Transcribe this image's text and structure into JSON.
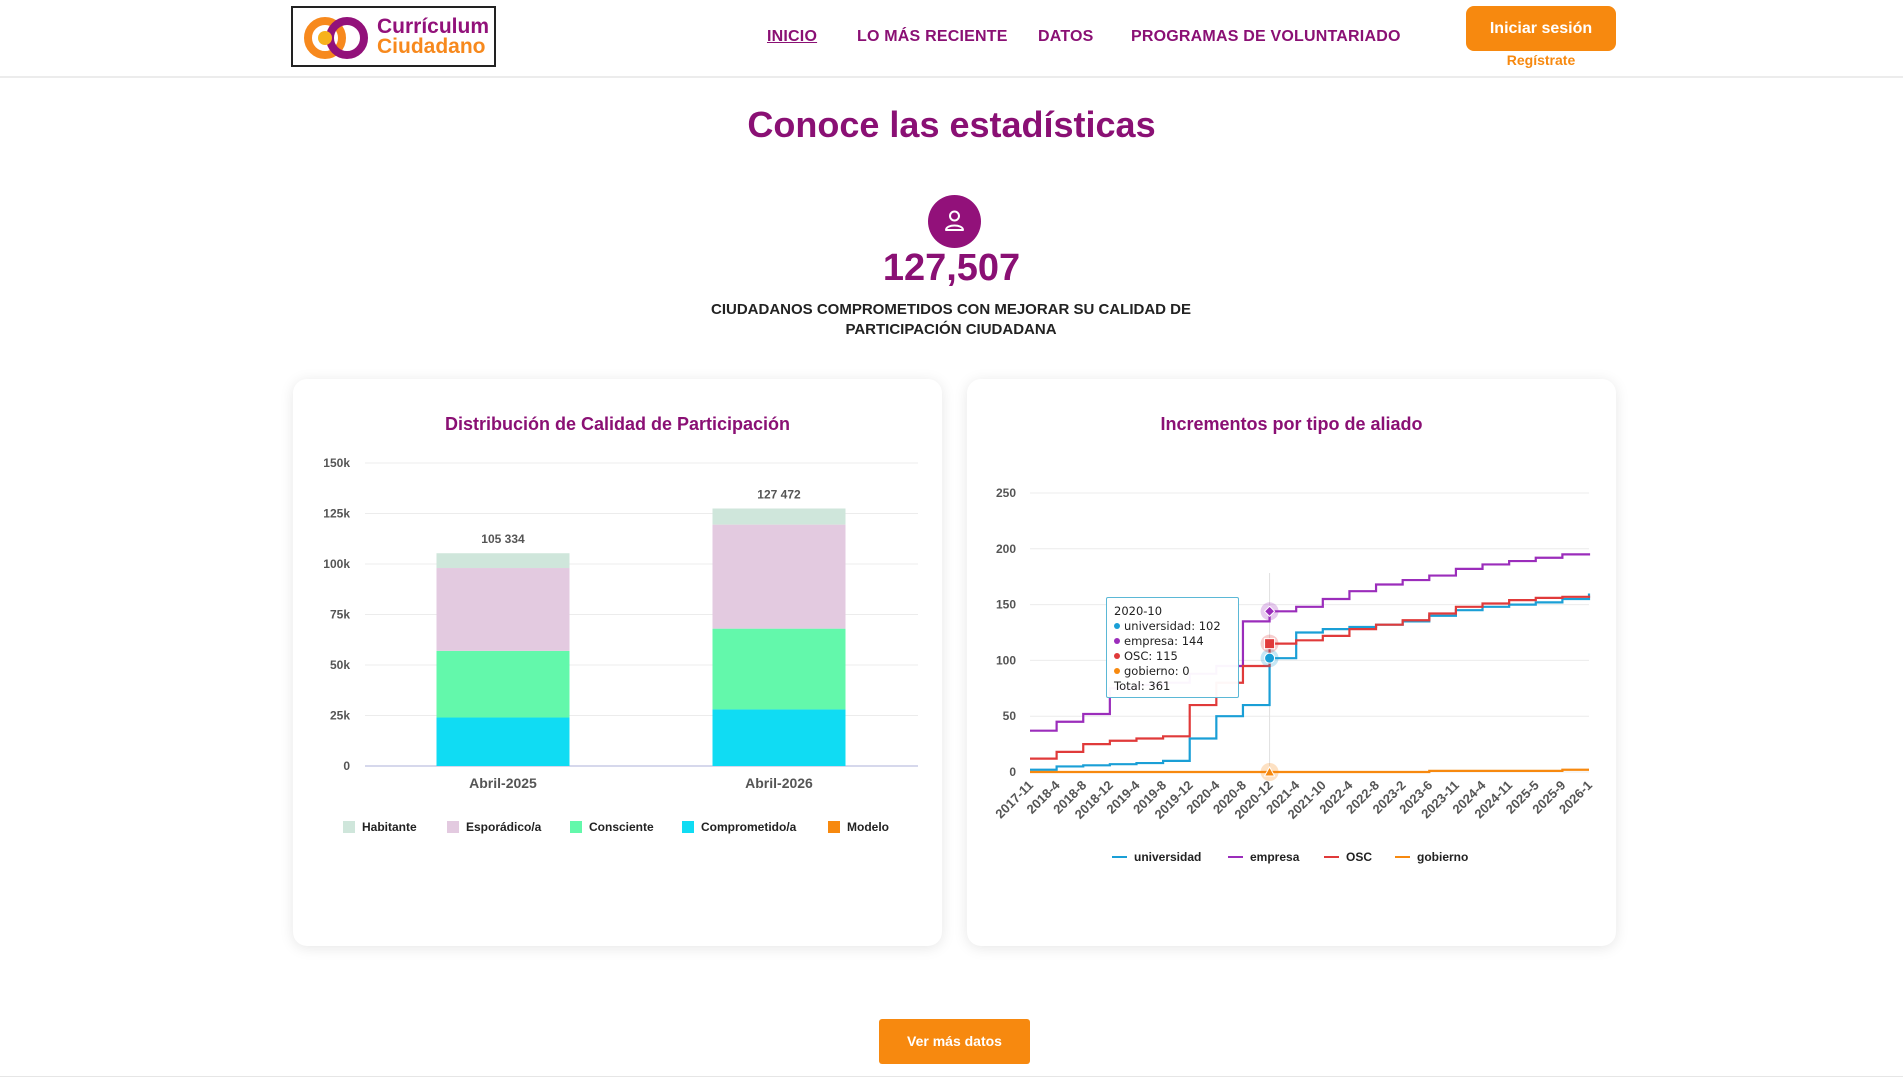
{
  "header": {
    "logo": {
      "line1": "Currículum",
      "line2": "Ciudadano"
    },
    "nav": [
      {
        "label": "INICIO",
        "active": true
      },
      {
        "label": "LO MÁS RECIENTE",
        "active": false
      },
      {
        "label": "DATOS",
        "active": false
      },
      {
        "label": "PROGRAMAS DE VOLUNTARIADO",
        "active": false
      }
    ],
    "login_label": "Iniciar sesión",
    "register_label": "Regístrate"
  },
  "hero": {
    "title": "Conoce las estadísticas",
    "icon": "user-icon",
    "count": "127,507",
    "caption": "CIUDADANOS COMPROMETIDOS CON MEJORAR SU CALIDAD DE PARTICIPACIÓN CIUDADANA"
  },
  "colors": {
    "brand_purple": "#8a1074",
    "brand_orange": "#f7890f",
    "habitante": "#cfe6db",
    "esporadico": "#e3cae0",
    "consciente": "#63f8ab",
    "comprometido": "#10dcf3",
    "modelo": "#f7890f",
    "universidad": "#1a9fd6",
    "empresa": "#9b2dbb",
    "osc": "#e03a3a",
    "gobierno": "#f7890f"
  },
  "chart_data": [
    {
      "type": "bar",
      "stacked": true,
      "title": "Distribución de Calidad de Participación",
      "categories": [
        "Abril-2025",
        "Abril-2026"
      ],
      "totals": [
        "105 334",
        "127 472"
      ],
      "ylim": [
        0,
        150000
      ],
      "yticks": [
        "0",
        "25k",
        "50k",
        "75k",
        "100k",
        "125k",
        "150k"
      ],
      "grid": true,
      "legend_position": "bottom",
      "series": [
        {
          "name": "Comprometido/a",
          "values": [
            24000,
            28000
          ]
        },
        {
          "name": "Consciente",
          "values": [
            33000,
            40000
          ]
        },
        {
          "name": "Esporádico/a",
          "values": [
            41000,
            51500
          ]
        },
        {
          "name": "Habitante",
          "values": [
            7334,
            7972
          ]
        },
        {
          "name": "Modelo",
          "values": [
            0,
            0
          ]
        }
      ],
      "legend_order": [
        "Habitante",
        "Esporádico/a",
        "Consciente",
        "Comprometido/a",
        "Modelo"
      ]
    },
    {
      "type": "line",
      "title": "Incrementos por tipo de aliado",
      "x_ticks": [
        "2017-11",
        "2018-4",
        "2018-8",
        "2018-12",
        "2019-4",
        "2019-8",
        "2019-12",
        "2020-4",
        "2020-8",
        "2020-12",
        "2021-4",
        "2021-10",
        "2022-4",
        "2022-8",
        "2023-2",
        "2023-6",
        "2023-11",
        "2024-4",
        "2024-11",
        "2025-5",
        "2025-9",
        "2026-1"
      ],
      "ylim": [
        0,
        250
      ],
      "yticks": [
        "0",
        "50",
        "100",
        "150",
        "200",
        "250"
      ],
      "grid": true,
      "legend_position": "bottom",
      "series": [
        {
          "name": "universidad",
          "values": [
            2,
            5,
            6,
            7,
            8,
            10,
            30,
            50,
            60,
            102,
            125,
            128,
            130,
            132,
            135,
            140,
            145,
            148,
            150,
            152,
            155,
            160
          ]
        },
        {
          "name": "empresa",
          "values": [
            37,
            45,
            52,
            75,
            78,
            80,
            88,
            95,
            135,
            144,
            148,
            155,
            162,
            168,
            172,
            176,
            182,
            186,
            189,
            192,
            195,
            196
          ]
        },
        {
          "name": "OSC",
          "values": [
            12,
            18,
            25,
            28,
            30,
            32,
            60,
            80,
            95,
            115,
            118,
            122,
            128,
            132,
            136,
            142,
            148,
            151,
            154,
            156,
            157,
            158
          ]
        },
        {
          "name": "gobierno",
          "values": [
            0,
            0,
            0,
            0,
            0,
            0,
            0,
            0,
            0,
            0,
            0,
            0,
            0,
            0,
            0,
            1,
            1,
            1,
            1,
            1,
            2,
            2
          ]
        }
      ],
      "tooltip": {
        "title": "2020-10",
        "rows": [
          "universidad: 102",
          "empresa: 144",
          "OSC: 115",
          "gobierno: 0"
        ],
        "total": "Total: 361"
      }
    }
  ],
  "footer": {
    "more_label": "Ver más datos"
  }
}
